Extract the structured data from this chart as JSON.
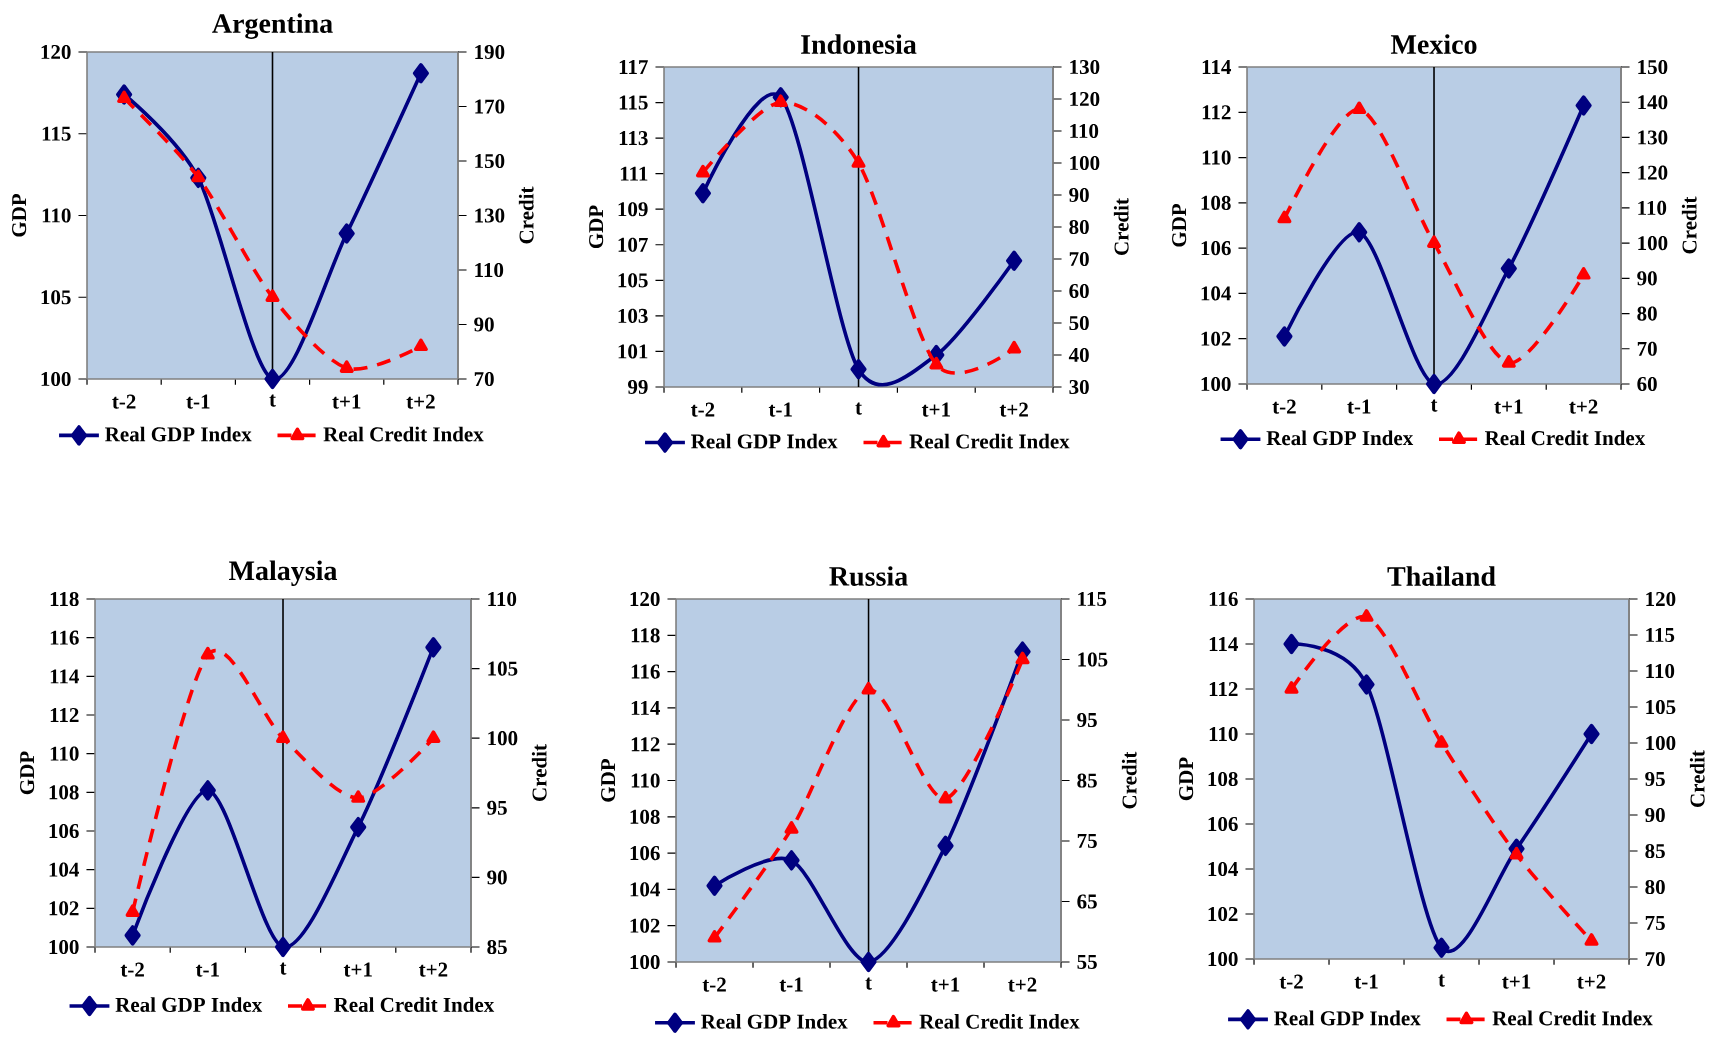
{
  "chart_data": [
    {
      "type": "line",
      "title": "Argentina",
      "ylabel": "GDP",
      "y2label": "Credit",
      "categories": [
        "t-2",
        "t-1",
        "t",
        "t+1",
        "t+2"
      ],
      "ylim": [
        100,
        120
      ],
      "yticks": [
        100,
        105,
        110,
        115,
        120
      ],
      "y2lim": [
        70,
        190
      ],
      "y2ticks": [
        70,
        90,
        110,
        130,
        150,
        170,
        190
      ],
      "legend": "bottom",
      "ref_lines": [
        {
          "axis": "x",
          "value": "t",
          "color": "#000000"
        }
      ],
      "series": [
        {
          "name": "Real GDP Index",
          "color": "#000080",
          "marker": "diamond",
          "line_style": "solid",
          "values": [
            117.4,
            112.3,
            100,
            108.9,
            118.7
          ]
        },
        {
          "name": "Real Credit Index",
          "color": "#ff0000",
          "marker": "triangle",
          "line_style": "dashed",
          "axis": "y2",
          "values": [
            173,
            144,
            100,
            74,
            82
          ]
        }
      ]
    },
    {
      "type": "line",
      "title": "Indonesia",
      "ylabel": "GDP",
      "y2label": "Credit",
      "categories": [
        "t-2",
        "t-1",
        "t",
        "t+1",
        "t+2"
      ],
      "ylim": [
        99,
        117
      ],
      "yticks": [
        99,
        101,
        103,
        105,
        107,
        109,
        111,
        113,
        115,
        117
      ],
      "y2lim": [
        30,
        130
      ],
      "y2ticks": [
        30,
        40,
        50,
        60,
        70,
        80,
        90,
        100,
        110,
        120,
        130
      ],
      "legend": "bottom",
      "ref_lines": [
        {
          "axis": "x",
          "value": "t",
          "color": "#000000"
        }
      ],
      "series": [
        {
          "name": "Real GDP Index",
          "color": "#000080",
          "marker": "diamond",
          "line_style": "solid",
          "values": [
            109.9,
            115.3,
            100,
            100.8,
            106.1
          ]
        },
        {
          "name": "Real Credit Index",
          "color": "#ff0000",
          "marker": "triangle",
          "line_style": "dashed",
          "axis": "y2",
          "values": [
            97,
            119,
            100,
            37,
            42
          ]
        }
      ]
    },
    {
      "type": "line",
      "title": "Mexico",
      "ylabel": "GDP",
      "y2label": "Credit",
      "categories": [
        "t-2",
        "t-1",
        "t",
        "t+1",
        "t+2"
      ],
      "ylim": [
        100,
        114
      ],
      "yticks": [
        100,
        102,
        104,
        106,
        108,
        110,
        112,
        114
      ],
      "y2lim": [
        60,
        150
      ],
      "y2ticks": [
        60,
        70,
        80,
        90,
        100,
        110,
        120,
        130,
        140,
        150
      ],
      "legend": "bottom",
      "ref_lines": [
        {
          "axis": "x",
          "value": "t",
          "color": "#000000"
        }
      ],
      "series": [
        {
          "name": "Real GDP Index",
          "color": "#000080",
          "marker": "diamond",
          "line_style": "solid",
          "values": [
            102.1,
            106.7,
            100,
            105.1,
            112.3
          ]
        },
        {
          "name": "Real Credit Index",
          "color": "#ff0000",
          "marker": "triangle",
          "line_style": "dashed",
          "axis": "y2",
          "values": [
            107,
            138,
            100,
            66,
            91
          ]
        }
      ]
    },
    {
      "type": "line",
      "title": "Malaysia",
      "ylabel": "GDP",
      "y2label": "Credit",
      "categories": [
        "t-2",
        "t-1",
        "t",
        "t+1",
        "t+2"
      ],
      "ylim": [
        100,
        118
      ],
      "yticks": [
        100,
        102,
        104,
        106,
        108,
        110,
        112,
        114,
        116,
        118
      ],
      "y2lim": [
        85,
        110
      ],
      "y2ticks": [
        85,
        90,
        95,
        100,
        105,
        110
      ],
      "legend": "bottom",
      "ref_lines": [
        {
          "axis": "x",
          "value": "t",
          "color": "#000000"
        }
      ],
      "series": [
        {
          "name": "Real GDP Index",
          "color": "#000080",
          "marker": "diamond",
          "line_style": "solid",
          "values": [
            100.6,
            108.1,
            100,
            106.2,
            115.5
          ]
        },
        {
          "name": "Real Credit Index",
          "color": "#ff0000",
          "marker": "triangle",
          "line_style": "dashed",
          "axis": "y2",
          "values": [
            87.5,
            106,
            100,
            95.7,
            100
          ]
        }
      ]
    },
    {
      "type": "line",
      "title": "Russia",
      "ylabel": "GDP",
      "y2label": "Credit",
      "categories": [
        "t-2",
        "t-1",
        "t",
        "t+1",
        "t+2"
      ],
      "ylim": [
        100,
        120
      ],
      "yticks": [
        100,
        102,
        104,
        106,
        108,
        110,
        112,
        114,
        116,
        118,
        120
      ],
      "y2lim": [
        55,
        115
      ],
      "y2ticks": [
        55,
        65,
        75,
        85,
        95,
        105,
        115
      ],
      "legend": "bottom",
      "ref_lines": [
        {
          "axis": "x",
          "value": "t",
          "color": "#000000"
        }
      ],
      "series": [
        {
          "name": "Real GDP Index",
          "color": "#000080",
          "marker": "diamond",
          "line_style": "solid",
          "values": [
            104.2,
            105.6,
            100,
            106.4,
            117.1
          ]
        },
        {
          "name": "Real Credit Index",
          "color": "#ff0000",
          "marker": "triangle",
          "line_style": "dashed",
          "axis": "y2",
          "values": [
            59,
            77,
            100,
            82,
            105
          ]
        }
      ]
    },
    {
      "type": "line",
      "title": "Thailand",
      "ylabel": "GDP",
      "y2label": "Credit",
      "categories": [
        "t-2",
        "t-1",
        "t",
        "t+1",
        "t+2"
      ],
      "ylim": [
        100,
        116
      ],
      "yticks": [
        100,
        102,
        104,
        106,
        108,
        110,
        112,
        114,
        116
      ],
      "y2lim": [
        70,
        120
      ],
      "y2ticks": [
        70,
        75,
        80,
        85,
        90,
        95,
        100,
        105,
        110,
        115,
        120
      ],
      "legend": "bottom",
      "series": [
        {
          "name": "Real GDP Index",
          "color": "#000080",
          "marker": "diamond",
          "line_style": "solid",
          "values": [
            114.0,
            112.2,
            100.5,
            104.9,
            110.0
          ]
        },
        {
          "name": "Real Credit Index",
          "color": "#ff0000",
          "marker": "triangle",
          "line_style": "dashed",
          "axis": "y2",
          "values": [
            107.5,
            117.5,
            100,
            84.5,
            72.5
          ]
        }
      ]
    }
  ]
}
